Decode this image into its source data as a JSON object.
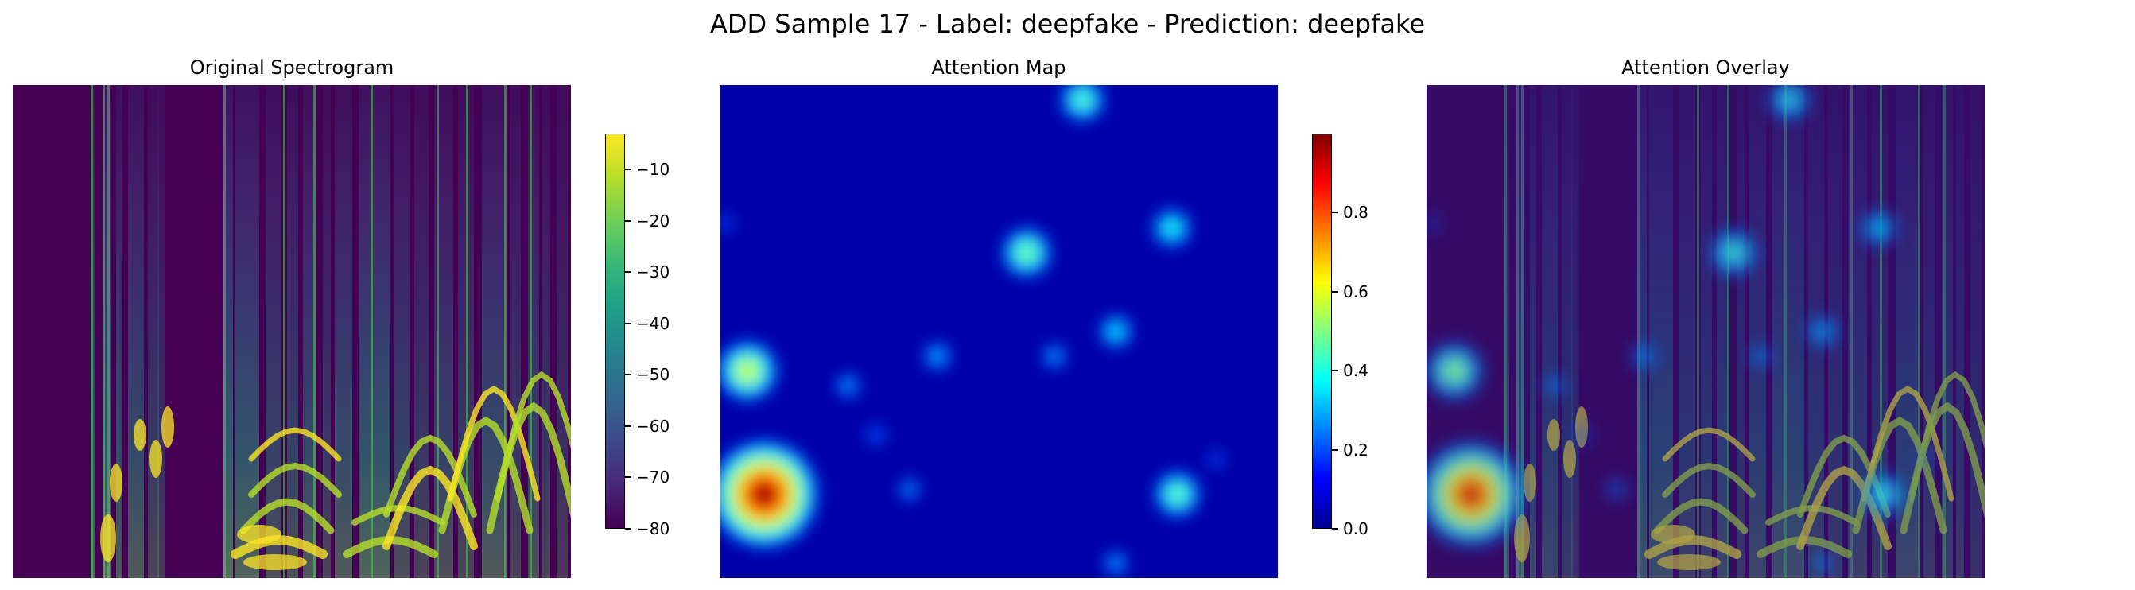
{
  "suptitle": "ADD Sample 17 - Label: deepfake - Prediction: deepfake",
  "panels": {
    "spectrogram": {
      "title": "Original Spectrogram",
      "colormap": "viridis"
    },
    "attention": {
      "title": "Attention Map",
      "colormap": "jet"
    },
    "overlay": {
      "title": "Attention Overlay"
    }
  },
  "chart_data": [
    {
      "type": "heatmap",
      "title": "Original Spectrogram",
      "colormap": "viridis",
      "colorbar": {
        "range": [
          -80,
          -3
        ],
        "ticks": [
          -10,
          -20,
          -30,
          -40,
          -50,
          -60,
          -70,
          -80
        ],
        "tick_labels": [
          "−10",
          "−20",
          "−30",
          "−40",
          "−50",
          "−60",
          "−70",
          "−80"
        ]
      },
      "axes": "off"
    },
    {
      "type": "heatmap",
      "title": "Attention Map",
      "colormap": "jet",
      "colorbar": {
        "range": [
          0,
          1
        ],
        "ticks": [
          0.0,
          0.2,
          0.4,
          0.6,
          0.8
        ],
        "tick_labels": [
          "0.0",
          "0.2",
          "0.4",
          "0.6",
          "0.8"
        ]
      },
      "hotspots": [
        {
          "x": 0.08,
          "y": 0.83,
          "value": 0.98
        },
        {
          "x": 0.05,
          "y": 0.58,
          "value": 0.55
        },
        {
          "x": 0.55,
          "y": 0.34,
          "value": 0.45
        },
        {
          "x": 0.82,
          "y": 0.83,
          "value": 0.42
        },
        {
          "x": 0.65,
          "y": 0.03,
          "value": 0.4
        },
        {
          "x": 0.81,
          "y": 0.29,
          "value": 0.35
        },
        {
          "x": 0.71,
          "y": 0.5,
          "value": 0.3
        },
        {
          "x": 0.39,
          "y": 0.55,
          "value": 0.25
        },
        {
          "x": 0.6,
          "y": 0.55,
          "value": 0.22
        },
        {
          "x": 0.23,
          "y": 0.61,
          "value": 0.22
        },
        {
          "x": 0.34,
          "y": 0.82,
          "value": 0.2
        },
        {
          "x": 0.28,
          "y": 0.71,
          "value": 0.18
        },
        {
          "x": 0.71,
          "y": 0.97,
          "value": 0.22
        },
        {
          "x": 0.01,
          "y": 0.28,
          "value": 0.15
        },
        {
          "x": 0.89,
          "y": 0.76,
          "value": 0.15
        }
      ],
      "axes": "off"
    },
    {
      "type": "heatmap",
      "title": "Attention Overlay",
      "description_layers": [
        "spectrogram",
        "attention (alpha)"
      ],
      "axes": "off"
    }
  ]
}
